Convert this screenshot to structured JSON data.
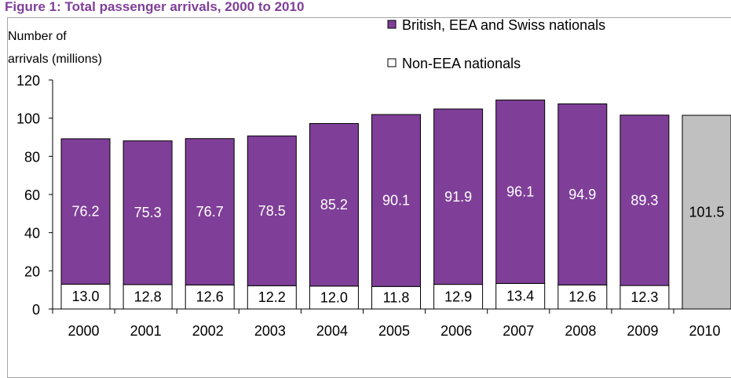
{
  "figure_title": "Figure 1: Total passenger arrivals, 2000 to 2010",
  "chart_data": {
    "type": "bar",
    "stacked": true,
    "ylabel": "Number of arrivals (millions)",
    "ylabel_lines": [
      "Number of",
      "arrivals (millions)"
    ],
    "ylim": [
      0,
      120
    ],
    "yticks": [
      0,
      20,
      40,
      60,
      80,
      100,
      120
    ],
    "grid": false,
    "legend_position": "top-right",
    "categories": [
      "2000",
      "2001",
      "2002",
      "2003",
      "2004",
      "2005",
      "2006",
      "2007",
      "2008",
      "2009",
      "2010"
    ],
    "series": [
      {
        "name": "Non-EEA nationals",
        "values": [
          13.0,
          12.8,
          12.6,
          12.2,
          12.0,
          11.8,
          12.9,
          13.4,
          12.6,
          12.3,
          null
        ],
        "labels": [
          "13.0",
          "12.8",
          "12.6",
          "12.2",
          "12.0",
          "11.8",
          "12.9",
          "13.4",
          "12.6",
          "12.3",
          ""
        ],
        "color": "#ffffff"
      },
      {
        "name": "British, EEA and Swiss nationals",
        "values": [
          76.2,
          75.3,
          76.7,
          78.5,
          85.2,
          90.1,
          91.9,
          96.1,
          94.9,
          89.3,
          null
        ],
        "labels": [
          "76.2",
          "75.3",
          "76.7",
          "78.5",
          "85.2",
          "90.1",
          "91.9",
          "96.1",
          "94.9",
          "89.3",
          ""
        ],
        "color": "#7f3f98"
      }
    ],
    "totals_only": {
      "category": "2010",
      "value": 101.5,
      "label": "101.5",
      "color": "#c0c0c0"
    },
    "legend": [
      {
        "label": "British, EEA and Swiss nationals",
        "color": "#7f3f98"
      },
      {
        "label": "Non-EEA nationals",
        "color": "#ffffff"
      }
    ]
  }
}
